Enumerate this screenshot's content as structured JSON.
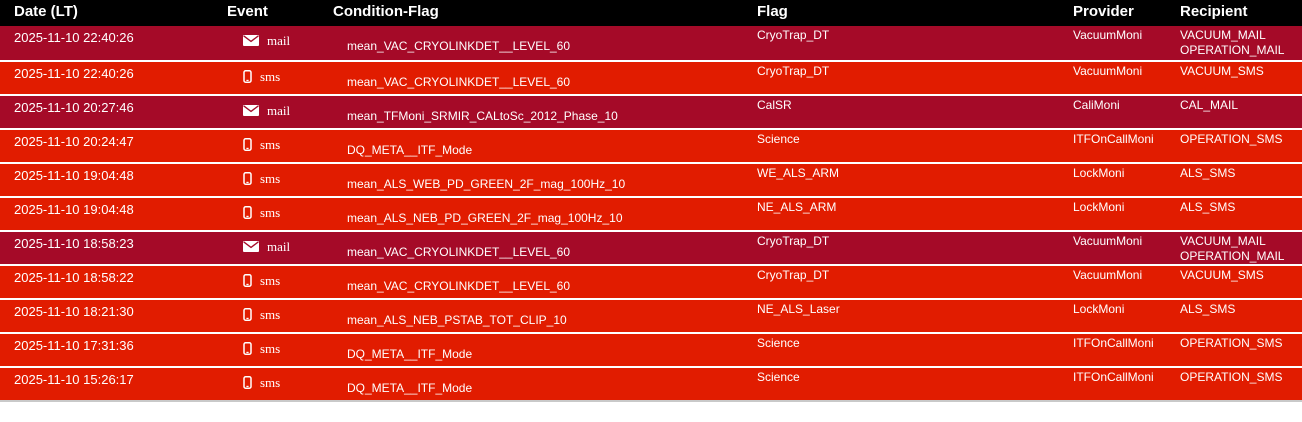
{
  "header": {
    "columns": [
      "Date (LT)",
      "Event",
      "Condition-Flag",
      "Flag",
      "Provider",
      "Recipient"
    ]
  },
  "rows": [
    {
      "date": "2025-11-10 22:40:26",
      "event": "mail",
      "condition": "mean_VAC_CRYOLINKDET__LEVEL_60",
      "flag": "CryoTrap_DT",
      "provider": "VacuumMoni",
      "recipients": [
        "VACUUM_MAIL",
        "OPERATION_MAIL"
      ]
    },
    {
      "date": "2025-11-10 22:40:26",
      "event": "sms",
      "condition": "mean_VAC_CRYOLINKDET__LEVEL_60",
      "flag": "CryoTrap_DT",
      "provider": "VacuumMoni",
      "recipients": [
        "VACUUM_SMS"
      ]
    },
    {
      "date": "2025-11-10 20:27:46",
      "event": "mail",
      "condition": "mean_TFMoni_SRMIR_CALtoSc_2012_Phase_10",
      "flag": "CalSR",
      "provider": "CaliMoni",
      "recipients": [
        "CAL_MAIL"
      ]
    },
    {
      "date": "2025-11-10 20:24:47",
      "event": "sms",
      "condition": "DQ_META__ITF_Mode",
      "flag": "Science",
      "provider": "ITFOnCallMoni",
      "recipients": [
        "OPERATION_SMS"
      ]
    },
    {
      "date": "2025-11-10 19:04:48",
      "event": "sms",
      "condition": "mean_ALS_WEB_PD_GREEN_2F_mag_100Hz_10",
      "flag": "WE_ALS_ARM",
      "provider": "LockMoni",
      "recipients": [
        "ALS_SMS"
      ]
    },
    {
      "date": "2025-11-10 19:04:48",
      "event": "sms",
      "condition": "mean_ALS_NEB_PD_GREEN_2F_mag_100Hz_10",
      "flag": "NE_ALS_ARM",
      "provider": "LockMoni",
      "recipients": [
        "ALS_SMS"
      ]
    },
    {
      "date": "2025-11-10 18:58:23",
      "event": "mail",
      "condition": "mean_VAC_CRYOLINKDET__LEVEL_60",
      "flag": "CryoTrap_DT",
      "provider": "VacuumMoni",
      "recipients": [
        "VACUUM_MAIL",
        "OPERATION_MAIL"
      ]
    },
    {
      "date": "2025-11-10 18:58:22",
      "event": "sms",
      "condition": "mean_VAC_CRYOLINKDET__LEVEL_60",
      "flag": "CryoTrap_DT",
      "provider": "VacuumMoni",
      "recipients": [
        "VACUUM_SMS"
      ]
    },
    {
      "date": "2025-11-10 18:21:30",
      "event": "sms",
      "condition": "mean_ALS_NEB_PSTAB_TOT_CLIP_10",
      "flag": "NE_ALS_Laser",
      "provider": "LockMoni",
      "recipients": [
        "ALS_SMS"
      ]
    },
    {
      "date": "2025-11-10 17:31:36",
      "event": "sms",
      "condition": "DQ_META__ITF_Mode",
      "flag": "Science",
      "provider": "ITFOnCallMoni",
      "recipients": [
        "OPERATION_SMS"
      ]
    },
    {
      "date": "2025-11-10 15:26:17",
      "event": "sms",
      "condition": "DQ_META__ITF_Mode",
      "flag": "Science",
      "provider": "ITFOnCallMoni",
      "recipients": [
        "OPERATION_SMS"
      ]
    }
  ],
  "icons": {
    "mail": "envelope-icon",
    "sms": "mobile-phone-icon"
  },
  "colors": {
    "header_bg": "#000000",
    "header_text": "#ffffff",
    "mail_row": "#a50a28",
    "sms_row": "#e11c00",
    "row_text": "#ffffff",
    "separator": "#ffffff",
    "table_bottom": "#c9c9c9"
  }
}
